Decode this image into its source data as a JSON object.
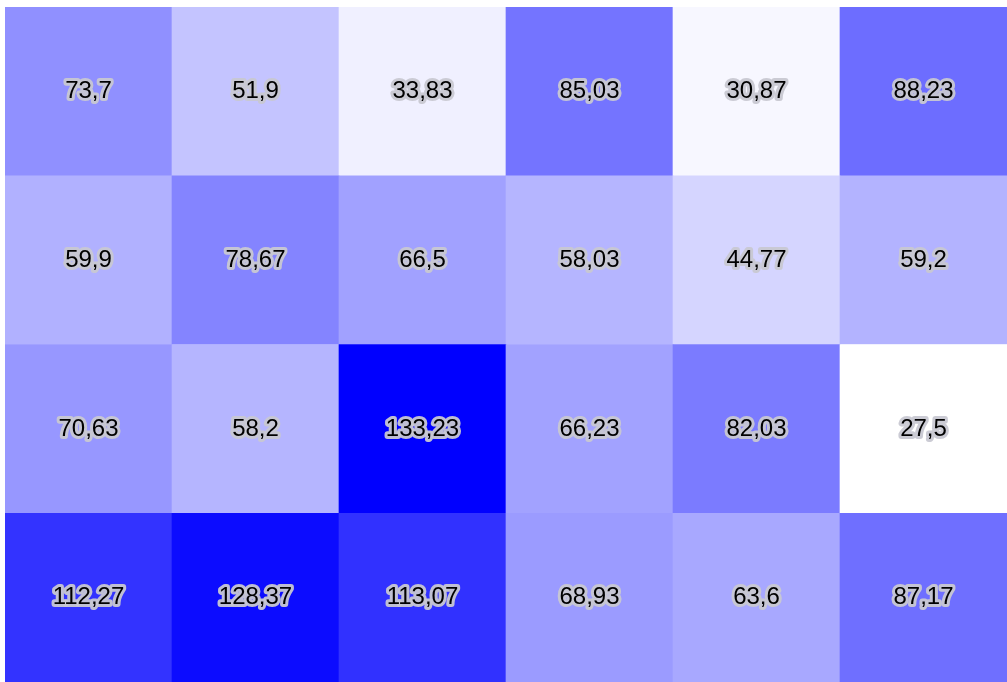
{
  "chart_data": {
    "type": "heatmap",
    "categories": [
      null,
      null,
      null,
      null,
      null,
      null
    ],
    "y_categories": [
      null,
      null,
      null,
      null
    ],
    "cells": [
      [
        73.7,
        51.9,
        33.83,
        85.03,
        30.87,
        88.23
      ],
      [
        59.9,
        78.67,
        66.5,
        58.03,
        44.77,
        59.2
      ],
      [
        70.63,
        58.2,
        133.23,
        66.23,
        82.03,
        27.5
      ],
      [
        112.27,
        128.37,
        113.07,
        68.93,
        63.6,
        87.17
      ]
    ],
    "cell_labels": [
      [
        "73,7",
        "51,9",
        "33,83",
        "85,03",
        "30,87",
        "88,23"
      ],
      [
        "59,9",
        "78,67",
        "66,5",
        "58,03",
        "44,77",
        "59,2"
      ],
      [
        "70,63",
        "58,2",
        "133,23",
        "66,23",
        "82,03",
        "27,5"
      ],
      [
        "112,27",
        "128,37",
        "113,07",
        "68,93",
        "63,6",
        "87,17"
      ]
    ]
  }
}
